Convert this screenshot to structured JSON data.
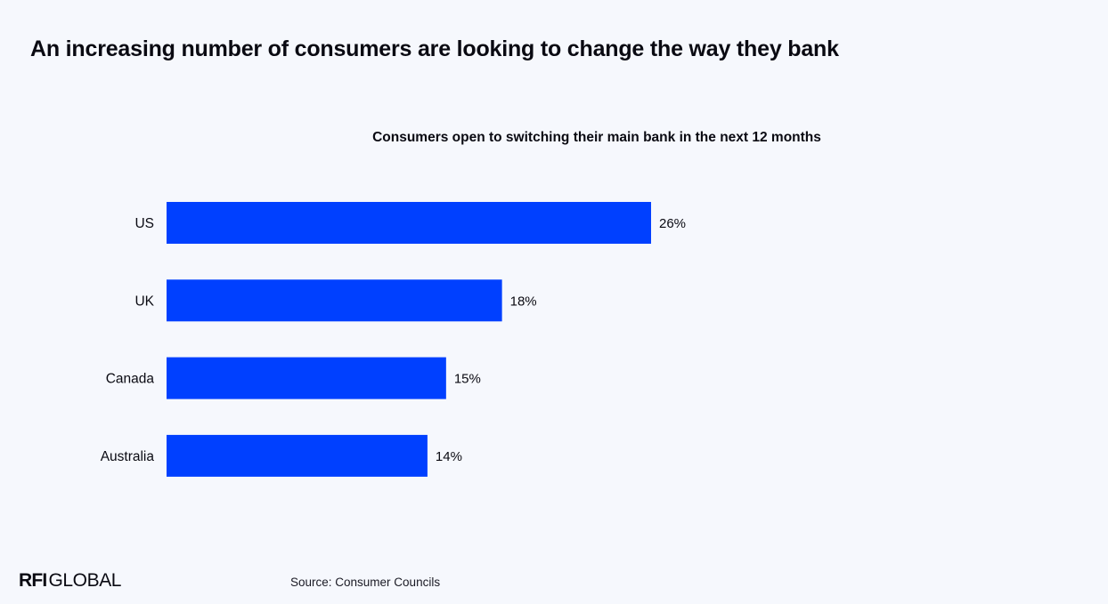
{
  "page": {
    "title": "An increasing number of consumers are looking to change the way they bank",
    "source": "Source: Consumer Councils"
  },
  "brand": {
    "logo_bold": "RFI",
    "logo_light": "GLOBAL"
  },
  "colors": {
    "background": "#f6f8fd",
    "bar": "#0040ff",
    "text": "#0a0a12"
  },
  "chart_data": {
    "type": "bar",
    "orientation": "horizontal",
    "title": "Consumers open to switching their main bank in the next 12 months",
    "categories": [
      "US",
      "UK",
      "Canada",
      "Australia"
    ],
    "values": [
      26,
      18,
      15,
      14
    ],
    "value_labels": [
      "26%",
      "18%",
      "15%",
      "14%"
    ],
    "unit": "%",
    "xlim": [
      0,
      26
    ],
    "grid": false,
    "legend": "none"
  }
}
